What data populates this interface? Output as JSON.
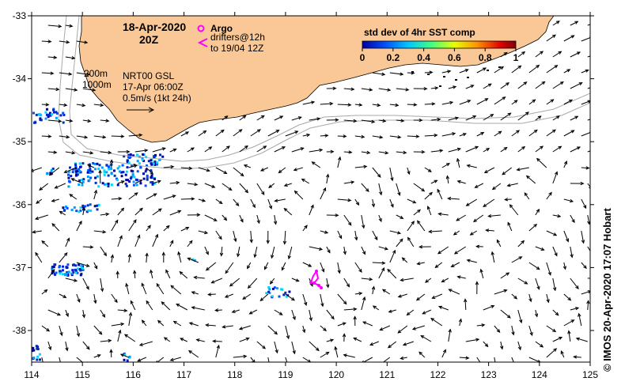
{
  "map": {
    "date": "18-Apr-2020",
    "time": "20Z",
    "legend_argo": "Argo",
    "legend_drifters_line1": "drifters@12h",
    "legend_drifters_line2": "to 19/04 12Z",
    "depth_200": "200m",
    "depth_1000": "1000m",
    "product": "NRT00 GSL",
    "product_time": "17-Apr 06:00Z",
    "scale_label": "0.5m/s (1kt 24h)",
    "colorbar_title": "std dev of 4hr SST comp",
    "colorbar_ticks": [
      "0",
      "0.2",
      "0.4",
      "0.6",
      "0.8",
      "1"
    ],
    "credit": "© IMOS 20-Apr-2020 17:07 Hobart",
    "x_ticks": [
      "114",
      "115",
      "116",
      "117",
      "118",
      "119",
      "120",
      "121",
      "122",
      "123",
      "124",
      "125"
    ],
    "y_ticks": [
      "-33",
      "-34",
      "-35",
      "-36",
      "-37",
      "-38"
    ],
    "land_color": "#f9c896",
    "argo_color": "#ff00ff"
  }
}
